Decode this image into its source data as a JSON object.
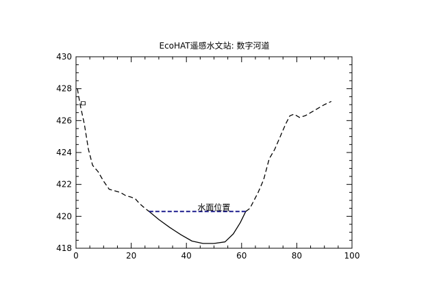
{
  "chart_data": {
    "type": "line",
    "title": "EcoHAT遥感水文站: 数字河道",
    "xlim": [
      0,
      100
    ],
    "ylim": [
      418,
      430
    ],
    "x_ticks": [
      0,
      20,
      40,
      60,
      80,
      100
    ],
    "y_ticks": [
      418,
      420,
      422,
      424,
      426,
      428,
      430
    ],
    "annotations": [
      {
        "text": "水面位置",
        "x": 44,
        "y": 420.3
      },
      {
        "text": "ㅁ",
        "x": 1.2,
        "y": 426.8
      }
    ],
    "series": [
      {
        "style": "dashed",
        "color": "#000000",
        "x": [
          0.5,
          1.5,
          3,
          4.5,
          6,
          8,
          10,
          12,
          14,
          16,
          18,
          20,
          21.5,
          23,
          25,
          26.5
        ],
        "y": [
          428.0,
          427.0,
          425.8,
          424.2,
          423.2,
          422.8,
          422.2,
          421.7,
          421.6,
          421.5,
          421.3,
          421.2,
          421.1,
          420.8,
          420.5,
          420.3
        ]
      },
      {
        "style": "solid",
        "color": "#000000",
        "x": [
          26.5,
          30,
          34,
          38,
          42,
          46,
          50,
          54,
          57,
          59.5,
          61.5
        ],
        "y": [
          420.3,
          419.8,
          419.3,
          418.85,
          418.45,
          418.3,
          418.3,
          418.4,
          418.9,
          419.6,
          420.3
        ]
      },
      {
        "style": "dashed",
        "color": "#000000",
        "x": [
          61.5,
          63,
          66,
          68,
          70,
          72,
          74,
          76,
          77.5,
          79,
          81,
          83,
          85,
          88,
          90,
          92.5
        ],
        "y": [
          420.3,
          420.5,
          421.5,
          422.3,
          423.6,
          424.2,
          425.0,
          425.8,
          426.3,
          426.4,
          426.2,
          426.3,
          426.5,
          426.8,
          427.0,
          427.2
        ]
      },
      {
        "style": "dashed",
        "color": "#1a1a8c",
        "x": [
          26.5,
          61.5
        ],
        "y": [
          420.3,
          420.3
        ]
      }
    ]
  }
}
